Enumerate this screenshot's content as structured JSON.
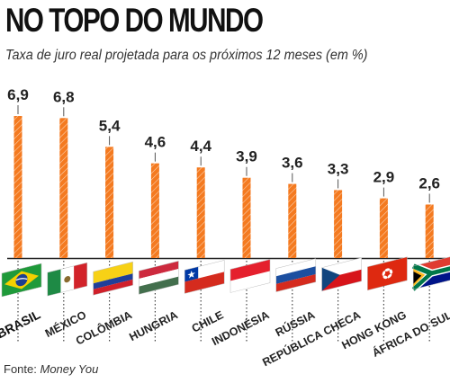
{
  "chart_data": {
    "type": "bar",
    "title": "NO TOPO DO MUNDO",
    "subtitle": "Taxa de juro real projetada para os próximos 12 meses (em %)",
    "categories": [
      "BRASIL",
      "MÉXICO",
      "COLÔMBIA",
      "HUNGRIA",
      "CHILE",
      "INDONÉSIA",
      "RÚSSIA",
      "REPÚBLICA CHECA",
      "HONG KONG",
      "ÁFRICA DO SUL"
    ],
    "values": [
      6.9,
      6.8,
      5.4,
      4.6,
      4.4,
      3.9,
      3.6,
      3.3,
      2.9,
      2.6
    ],
    "value_labels": [
      "6,9",
      "6,8",
      "5,4",
      "4,6",
      "4,4",
      "3,9",
      "3,6",
      "3,3",
      "2,9",
      "2,6"
    ],
    "flags": [
      "brazil-flag",
      "mexico-flag",
      "colombia-flag",
      "hungary-flag",
      "chile-flag",
      "indonesia-flag",
      "russia-flag",
      "czech-flag",
      "hong-kong-flag",
      "south-africa-flag"
    ],
    "highlight_category": "BRASIL",
    "bar_color": "#f47a20",
    "bar_hatch_color": "#fbd0ad",
    "grid": false,
    "source_label": "Fonte:",
    "source_name": "Money You"
  }
}
